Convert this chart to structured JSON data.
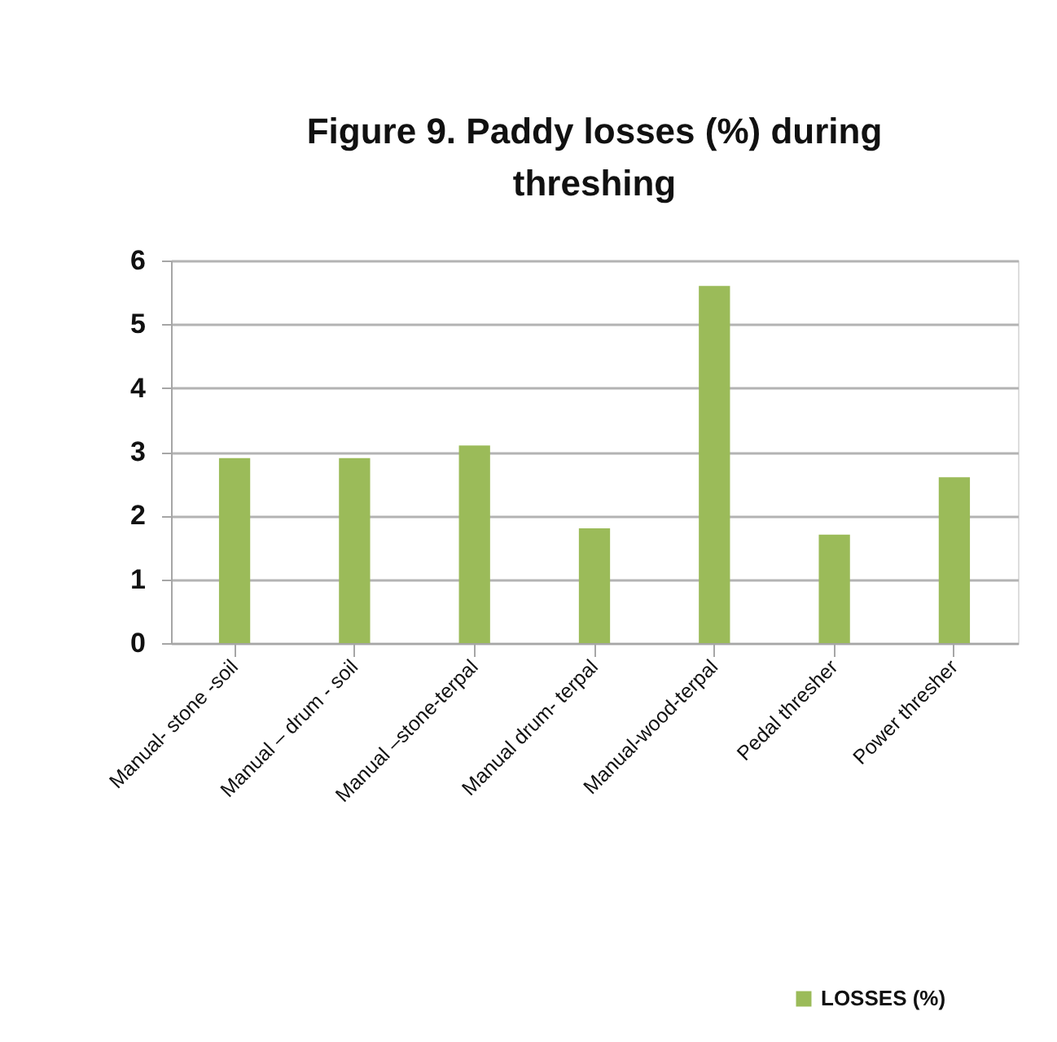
{
  "chart_data": {
    "type": "bar",
    "title": "Figure 9. Paddy losses (%) during threshing",
    "categories": [
      "Manual- stone -soil",
      "Manual – drum - soil",
      "Manual –stone-terpal",
      "Manual drum- terpal",
      "Manual-wood-terpal",
      "Pedal thresher",
      "Power thresher"
    ],
    "series": [
      {
        "name": "LOSSES (%)",
        "color": "#9bbb59",
        "values": [
          2.9,
          2.9,
          3.1,
          1.8,
          5.6,
          1.7,
          2.6
        ]
      }
    ],
    "ylim": [
      0,
      6
    ],
    "yticks": [
      0,
      1,
      2,
      3,
      4,
      5,
      6
    ],
    "grid": "y",
    "legend": "bottom right"
  }
}
